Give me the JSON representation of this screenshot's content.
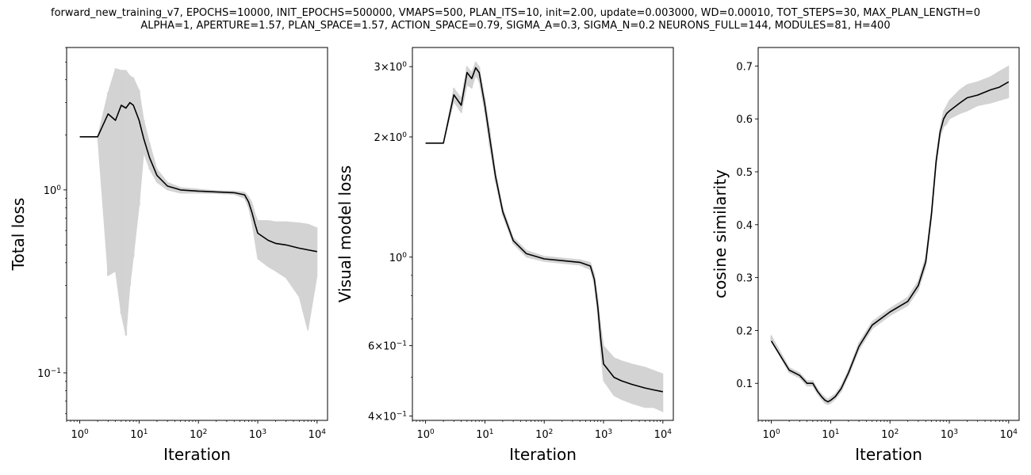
{
  "title_lines": [
    "forward_new_training_v7, EPOCHS=10000, INIT_EPOCHS=500000, VMAPS=500, PLAN_ITS=10, init=2.00, update=0.003000, WD=0.00010, TOT_STEPS=30, MAX_PLAN_LENGTH=0",
    "ALPHA=1, APERTURE=1.57, PLAN_SPACE=1.57, ACTION_SPACE=0.79, SIGMA_A=0.3, SIGMA_N=0.2 NEURONS_FULL=144, MODULES=81, H=400"
  ],
  "colors": {
    "mean_line": "#000000",
    "band": "#d3d3d3"
  },
  "chart_data": [
    {
      "type": "line",
      "xlabel": "Iteration",
      "ylabel": "Total loss",
      "xscale": "log",
      "yscale": "log",
      "xlim": [
        0.6,
        15000
      ],
      "ylim": [
        0.055,
        6.0
      ],
      "xticks": [
        1,
        10,
        100,
        1000,
        10000
      ],
      "xtick_labels": [
        "10^0",
        "10^1",
        "10^2",
        "10^3",
        "10^4"
      ],
      "yticks": [
        0.1,
        1
      ],
      "ytick_labels": [
        "10^-1",
        "10^0"
      ],
      "series": [
        {
          "x": [
            1,
            2,
            3,
            4,
            5,
            6,
            7,
            8,
            10,
            12,
            15,
            20,
            30,
            50,
            100,
            200,
            400,
            600,
            700,
            800,
            900,
            1000,
            1500,
            2000,
            3000,
            5000,
            7000,
            10000
          ],
          "values": [
            1.95,
            1.95,
            2.6,
            2.4,
            2.9,
            2.8,
            3.0,
            2.9,
            2.4,
            1.9,
            1.5,
            1.2,
            1.05,
            1.0,
            0.985,
            0.975,
            0.965,
            0.94,
            0.86,
            0.75,
            0.65,
            0.58,
            0.53,
            0.51,
            0.5,
            0.48,
            0.47,
            0.46
          ],
          "lower": [
            1.95,
            1.95,
            0.34,
            0.36,
            0.21,
            0.16,
            0.3,
            0.43,
            0.82,
            1.6,
            1.3,
            1.1,
            1.0,
            0.96,
            0.96,
            0.955,
            0.945,
            0.9,
            0.8,
            0.66,
            0.52,
            0.42,
            0.38,
            0.36,
            0.33,
            0.26,
            0.17,
            0.34
          ],
          "upper": [
            1.95,
            1.95,
            3.4,
            4.6,
            4.5,
            4.5,
            4.2,
            4.1,
            3.5,
            2.4,
            1.8,
            1.3,
            1.1,
            1.03,
            1.01,
            0.99,
            0.985,
            0.97,
            0.92,
            0.85,
            0.74,
            0.68,
            0.68,
            0.67,
            0.67,
            0.66,
            0.65,
            0.62
          ]
        }
      ]
    },
    {
      "type": "line",
      "xlabel": "Iteration",
      "ylabel": "Visual model loss",
      "xscale": "log",
      "yscale": "log",
      "xlim": [
        0.6,
        15000
      ],
      "ylim": [
        0.39,
        3.35
      ],
      "xticks": [
        1,
        10,
        100,
        1000,
        10000
      ],
      "xtick_labels": [
        "10^0",
        "10^1",
        "10^2",
        "10^3",
        "10^4"
      ],
      "yticks": [
        0.4,
        0.6,
        1,
        2,
        3
      ],
      "ytick_labels": [
        "4×10^-1",
        "6×10^-1",
        "10^0",
        "2×10^0",
        "3×10^0"
      ],
      "minor_yticks": [
        0.5,
        0.7,
        0.8,
        0.9
      ],
      "series": [
        {
          "x": [
            1,
            2,
            3,
            4,
            5,
            6,
            7,
            8,
            10,
            12,
            15,
            20,
            30,
            50,
            100,
            200,
            400,
            600,
            700,
            800,
            900,
            1000,
            1500,
            2000,
            3000,
            5000,
            7000,
            10000
          ],
          "values": [
            1.93,
            1.93,
            2.55,
            2.4,
            2.9,
            2.8,
            2.98,
            2.9,
            2.4,
            2.0,
            1.6,
            1.3,
            1.1,
            1.02,
            0.99,
            0.98,
            0.97,
            0.95,
            0.88,
            0.75,
            0.62,
            0.54,
            0.5,
            0.49,
            0.48,
            0.47,
            0.465,
            0.46
          ],
          "lower": [
            1.93,
            1.93,
            2.45,
            2.3,
            2.7,
            2.65,
            2.85,
            2.75,
            2.3,
            1.9,
            1.55,
            1.27,
            1.08,
            1.0,
            0.975,
            0.965,
            0.955,
            0.93,
            0.85,
            0.71,
            0.57,
            0.49,
            0.45,
            0.44,
            0.43,
            0.42,
            0.42,
            0.41
          ],
          "upper": [
            1.93,
            1.93,
            2.65,
            2.5,
            3.0,
            2.9,
            3.08,
            3.0,
            2.5,
            2.1,
            1.65,
            1.33,
            1.12,
            1.04,
            1.005,
            0.995,
            0.985,
            0.97,
            0.91,
            0.79,
            0.67,
            0.6,
            0.56,
            0.55,
            0.54,
            0.53,
            0.52,
            0.51
          ]
        }
      ]
    },
    {
      "type": "line",
      "xlabel": "Iteration",
      "ylabel": "cosine similarity",
      "xscale": "log",
      "yscale": "linear",
      "xlim": [
        0.6,
        15000
      ],
      "ylim": [
        0.03,
        0.735
      ],
      "xticks": [
        1,
        10,
        100,
        1000,
        10000
      ],
      "xtick_labels": [
        "10^0",
        "10^1",
        "10^2",
        "10^3",
        "10^4"
      ],
      "yticks": [
        0.1,
        0.2,
        0.3,
        0.4,
        0.5,
        0.6,
        0.7
      ],
      "ytick_labels": [
        "0.1",
        "0.2",
        "0.3",
        "0.4",
        "0.5",
        "0.6",
        "0.7"
      ],
      "series": [
        {
          "x": [
            1,
            2,
            3,
            4,
            5,
            6,
            7,
            8,
            9,
            10,
            12,
            15,
            20,
            30,
            50,
            100,
            200,
            300,
            400,
            500,
            600,
            700,
            800,
            900,
            1000,
            1500,
            2000,
            3000,
            5000,
            7000,
            10000
          ],
          "values": [
            0.18,
            0.125,
            0.115,
            0.1,
            0.1,
            0.085,
            0.075,
            0.068,
            0.065,
            0.068,
            0.075,
            0.09,
            0.12,
            0.17,
            0.21,
            0.235,
            0.255,
            0.285,
            0.33,
            0.42,
            0.52,
            0.575,
            0.6,
            0.61,
            0.615,
            0.63,
            0.64,
            0.645,
            0.655,
            0.66,
            0.67
          ],
          "lower": [
            0.18,
            0.12,
            0.11,
            0.095,
            0.095,
            0.08,
            0.07,
            0.062,
            0.06,
            0.062,
            0.07,
            0.084,
            0.114,
            0.163,
            0.203,
            0.228,
            0.247,
            0.276,
            0.32,
            0.41,
            0.51,
            0.565,
            0.585,
            0.59,
            0.6,
            0.61,
            0.615,
            0.625,
            0.63,
            0.635,
            0.64
          ],
          "upper": [
            0.19,
            0.13,
            0.12,
            0.105,
            0.105,
            0.09,
            0.08,
            0.074,
            0.07,
            0.074,
            0.08,
            0.096,
            0.126,
            0.177,
            0.217,
            0.242,
            0.263,
            0.294,
            0.34,
            0.43,
            0.53,
            0.585,
            0.615,
            0.625,
            0.635,
            0.655,
            0.665,
            0.67,
            0.68,
            0.69,
            0.7
          ]
        }
      ]
    }
  ]
}
